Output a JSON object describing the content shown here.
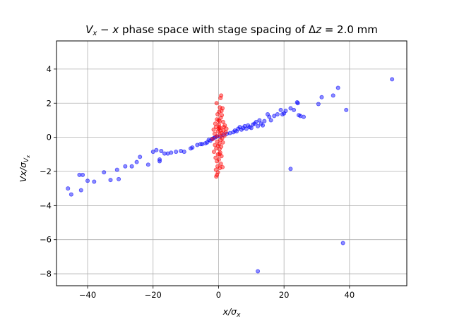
{
  "chart_data": {
    "type": "scatter",
    "title": "V_x − x phase space with stage spacing of Δz = 2.0 mm",
    "title_parts": {
      "v": "V",
      "v_sub": "x",
      "minus": " − ",
      "x": "x",
      "rest": " phase space with stage spacing of ",
      "delta": "Δ",
      "z": "z",
      "value": " = 2.0 mm"
    },
    "xlabel": "x/σ_x",
    "xlabel_parts": {
      "x": "x/σ",
      "sub": "x"
    },
    "ylabel": "Vx/σ_Vx",
    "ylabel_parts": {
      "main": "Vx/σ",
      "sub": "V",
      "subsub": "x"
    },
    "xlim": [
      -49.5,
      57.5
    ],
    "ylim": [
      -8.7,
      5.65
    ],
    "xticks": [
      -40,
      -20,
      0,
      20,
      40
    ],
    "yticks": [
      -8,
      -6,
      -4,
      -2,
      0,
      2,
      4
    ],
    "xtick_labels": [
      "−40",
      "−20",
      "0",
      "20",
      "40"
    ],
    "ytick_labels": [
      "−8",
      "−6",
      "−4",
      "−2",
      "0",
      "2",
      "4"
    ],
    "grid": true,
    "legend": "none",
    "series": [
      {
        "color": "#0000ff",
        "points": [
          [
            -46,
            -3.0
          ],
          [
            -45,
            -3.35
          ],
          [
            -42.5,
            -2.2
          ],
          [
            -42,
            -3.1
          ],
          [
            -41.5,
            -2.2
          ],
          [
            -40,
            -2.55
          ],
          [
            -38,
            -2.6
          ],
          [
            -35,
            -2.05
          ],
          [
            -33,
            -2.5
          ],
          [
            -31,
            -1.9
          ],
          [
            -30.5,
            -2.45
          ],
          [
            -28.5,
            -1.7
          ],
          [
            -26.5,
            -1.7
          ],
          [
            -25,
            -1.45
          ],
          [
            -24,
            -1.15
          ],
          [
            -21.5,
            -1.6
          ],
          [
            -20,
            -0.85
          ],
          [
            -19,
            -0.75
          ],
          [
            -18,
            -1.3
          ],
          [
            -18,
            -1.4
          ],
          [
            -17.5,
            -0.8
          ],
          [
            -16.5,
            -0.95
          ],
          [
            -15.5,
            -0.95
          ],
          [
            -14.5,
            -0.9
          ],
          [
            -13,
            -0.85
          ],
          [
            -11.5,
            -0.8
          ],
          [
            -10.5,
            -0.85
          ],
          [
            -8.5,
            -0.65
          ],
          [
            -8,
            -0.6
          ],
          [
            -6.5,
            -0.45
          ],
          [
            -5.5,
            -0.4
          ],
          [
            -5,
            -0.4
          ],
          [
            -4,
            -0.35
          ],
          [
            -3.5,
            -0.3
          ],
          [
            -3,
            -0.15
          ],
          [
            -2.5,
            -0.2
          ],
          [
            -2,
            -0.1
          ],
          [
            -1.5,
            -0.05
          ],
          [
            -1,
            0.0
          ],
          [
            -0.5,
            0.05
          ],
          [
            0.5,
            0.05
          ],
          [
            1.5,
            0.15
          ],
          [
            2.5,
            0.2
          ],
          [
            3.5,
            0.25
          ],
          [
            4.5,
            0.3
          ],
          [
            5.0,
            0.4
          ],
          [
            5.5,
            0.35
          ],
          [
            6.0,
            0.5
          ],
          [
            6.5,
            0.6
          ],
          [
            7.0,
            0.45
          ],
          [
            7.5,
            0.55
          ],
          [
            8.0,
            0.65
          ],
          [
            8.5,
            0.5
          ],
          [
            9.0,
            0.7
          ],
          [
            9.5,
            0.6
          ],
          [
            10.0,
            0.55
          ],
          [
            10.5,
            0.75
          ],
          [
            11.0,
            0.8
          ],
          [
            11.5,
            0.9
          ],
          [
            12.0,
            0.65
          ],
          [
            12.5,
            1.0
          ],
          [
            13.0,
            0.8
          ],
          [
            13.5,
            0.7
          ],
          [
            14.0,
            0.95
          ],
          [
            15.0,
            1.35
          ],
          [
            15.5,
            1.2
          ],
          [
            16.0,
            1.0
          ],
          [
            17.0,
            1.25
          ],
          [
            18.0,
            1.35
          ],
          [
            19.0,
            1.6
          ],
          [
            19.5,
            1.35
          ],
          [
            20.0,
            1.4
          ],
          [
            20.5,
            1.55
          ],
          [
            22.0,
            1.7
          ],
          [
            23.0,
            1.6
          ],
          [
            24.0,
            2.05
          ],
          [
            24.2,
            2.0
          ],
          [
            24.5,
            1.3
          ],
          [
            25.0,
            1.25
          ],
          [
            26.0,
            1.2
          ],
          [
            30.5,
            1.95
          ],
          [
            31.5,
            2.35
          ],
          [
            35.0,
            2.45
          ],
          [
            36.5,
            2.9
          ],
          [
            39.0,
            1.6
          ],
          [
            53.0,
            3.4
          ],
          [
            22.0,
            -1.85
          ],
          [
            12.0,
            -7.85
          ],
          [
            38.0,
            -6.2
          ]
        ]
      },
      {
        "color": "#ff0000",
        "points": [
          [
            -0.6,
            2.0
          ],
          [
            0.8,
            2.45
          ],
          [
            0.6,
            2.3
          ],
          [
            0.4,
            1.75
          ],
          [
            1.2,
            1.7
          ],
          [
            0.9,
            1.55
          ],
          [
            0.2,
            1.5
          ],
          [
            -0.3,
            1.35
          ],
          [
            1.0,
            1.3
          ],
          [
            0.7,
            1.15
          ],
          [
            -0.5,
            1.05
          ],
          [
            0.3,
            0.95
          ],
          [
            1.4,
            0.9
          ],
          [
            -1.0,
            0.8
          ],
          [
            0.1,
            0.75
          ],
          [
            2.4,
            0.5
          ],
          [
            1.9,
            0.7
          ],
          [
            -0.8,
            0.6
          ],
          [
            0.5,
            0.55
          ],
          [
            -1.5,
            0.45
          ],
          [
            1.5,
            0.4
          ],
          [
            -0.2,
            0.35
          ],
          [
            0.9,
            0.25
          ],
          [
            -1.2,
            0.2
          ],
          [
            0.4,
            0.15
          ],
          [
            1.8,
            0.1
          ],
          [
            -0.6,
            0.05
          ],
          [
            1.1,
            -0.05
          ],
          [
            -1.8,
            -0.1
          ],
          [
            0.6,
            -0.15
          ],
          [
            -0.4,
            -0.25
          ],
          [
            1.3,
            -0.3
          ],
          [
            0.2,
            -0.4
          ],
          [
            -1.1,
            -0.45
          ],
          [
            0.8,
            -0.55
          ],
          [
            -0.7,
            -0.65
          ],
          [
            0.3,
            -0.7
          ],
          [
            -1.4,
            -0.85
          ],
          [
            0.5,
            -0.9
          ],
          [
            -0.2,
            -1.0
          ],
          [
            0.9,
            -1.1
          ],
          [
            -0.9,
            -1.2
          ],
          [
            0.1,
            -1.3
          ],
          [
            -0.5,
            -1.4
          ],
          [
            0.7,
            -1.55
          ],
          [
            -0.3,
            -1.7
          ],
          [
            1.2,
            -1.75
          ],
          [
            0.4,
            -1.8
          ],
          [
            -0.8,
            -1.9
          ],
          [
            -0.2,
            -2.05
          ],
          [
            -0.5,
            -2.2
          ],
          [
            -0.7,
            -2.3
          ],
          [
            0.0,
            0.5
          ],
          [
            0.2,
            0.6
          ],
          [
            0.6,
            0.4
          ],
          [
            -0.1,
            -0.5
          ],
          [
            0.0,
            1.0
          ],
          [
            0.3,
            -1.0
          ],
          [
            1.6,
            0.6
          ],
          [
            2.2,
            0.3
          ]
        ]
      }
    ]
  }
}
